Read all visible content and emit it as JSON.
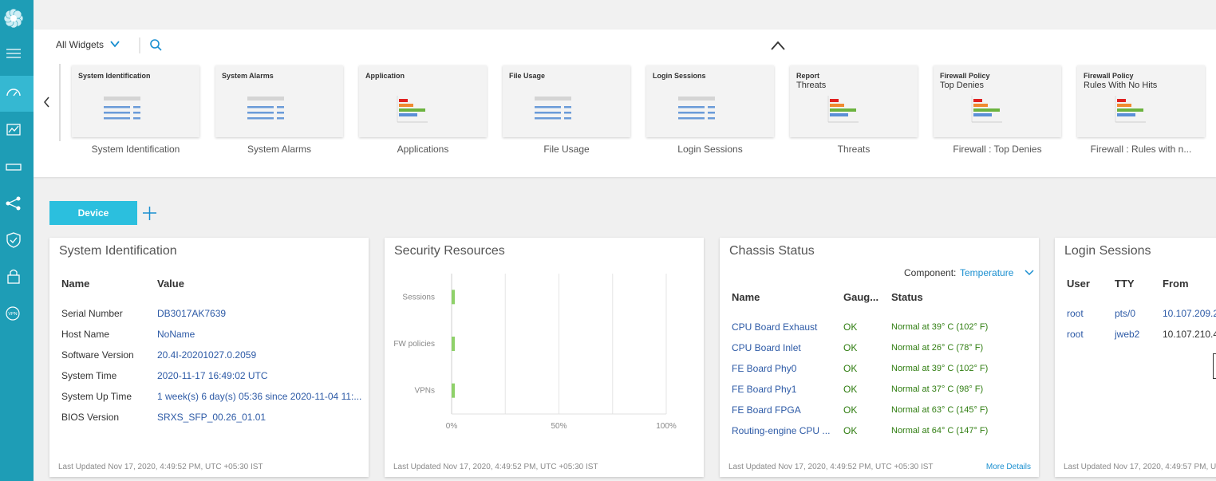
{
  "sidebar": {
    "vpn": "VPN"
  },
  "toolbar": {
    "filter": "All Widgets"
  },
  "widgets": [
    {
      "header": [
        "System Identification"
      ],
      "icon": "list",
      "caption": "System Identification"
    },
    {
      "header": [
        "System Alarms"
      ],
      "icon": "list",
      "caption": "System Alarms"
    },
    {
      "header": [
        "Application"
      ],
      "icon": "bars",
      "caption": "Applications"
    },
    {
      "header": [
        "File Usage"
      ],
      "icon": "list",
      "caption": "File Usage"
    },
    {
      "header": [
        "Login Sessions"
      ],
      "icon": "list",
      "caption": "Login Sessions"
    },
    {
      "header": [
        "Report",
        "Threats"
      ],
      "icon": "bars",
      "caption": "Threats"
    },
    {
      "header": [
        "Firewall Policy",
        "Top Denies"
      ],
      "icon": "bars",
      "caption": "Firewall : Top Denies"
    },
    {
      "header": [
        "Firewall Policy",
        "Rules With No Hits"
      ],
      "icon": "bars",
      "caption": "Firewall : Rules with n..."
    }
  ],
  "tab": {
    "label": "Device"
  },
  "panels": [
    {
      "title": "System Identification",
      "columns": [
        "Name",
        "Value"
      ],
      "rows": [
        [
          "Serial Number",
          "DB3017AK7639"
        ],
        [
          "Host Name",
          "NoName"
        ],
        [
          "Software Version",
          "20.4I-20201027.0.2059"
        ],
        [
          "System Time",
          "2020-11-17 16:49:02 UTC"
        ],
        [
          "System Up Time",
          "1 week(s) 6 day(s)  05:36 since 2020-11-04 11:..."
        ],
        [
          "BIOS Version",
          "SRXS_SFP_00.26_01.01"
        ]
      ],
      "footer": "Last Updated Nov 17, 2020, 4:49:52 PM, UTC +05:30 IST"
    },
    {
      "title": "Chassis Status",
      "component_label": "Component:",
      "component": "Temperature",
      "columns": [
        "Name",
        "Gaug...",
        "Status"
      ],
      "rows": [
        [
          "CPU Board Exhaust",
          "OK",
          "Normal at 39° C (102° F)"
        ],
        [
          "CPU Board Inlet",
          "OK",
          "Normal at 26° C (78° F)"
        ],
        [
          "FE Board Phy0",
          "OK",
          "Normal at 39° C (102° F)"
        ],
        [
          "FE Board Phy1",
          "OK",
          "Normal at 37° C (98° F)"
        ],
        [
          "FE Board FPGA",
          "OK",
          "Normal at 63° C (145° F)"
        ],
        [
          "Routing-engine CPU ...",
          "OK",
          "Normal at 64° C (147° F)"
        ]
      ],
      "footer": "Last Updated Nov 17, 2020, 4:49:52 PM, UTC +05:30 IST",
      "more": "More Details"
    },
    {
      "title": "Login Sessions",
      "columns": [
        "User",
        "TTY",
        "From"
      ],
      "rows": [
        [
          "root",
          "pts/0",
          "10.107.209.2"
        ],
        [
          "root",
          "jweb2",
          "10.107.210.4"
        ]
      ],
      "footer": "Last Updated Nov 17, 2020, 4:49:57 PM, U"
    }
  ],
  "chart_data": {
    "type": "bar",
    "title": "Security Resources",
    "categories": [
      "Sessions",
      "FW policies",
      "VPNs"
    ],
    "values": [
      1.5,
      1.5,
      1.5
    ],
    "color": "#8fd16a",
    "xlim": [
      0,
      100
    ],
    "xticks": [
      {
        "value": 0,
        "label": "0%"
      },
      {
        "value": 50,
        "label": "50%"
      },
      {
        "value": 100,
        "label": "100%"
      }
    ],
    "xminorticks": [
      25,
      75
    ],
    "grid": true,
    "footer": "Last Updated Nov 17, 2020, 4:49:52 PM, UTC +05:30 IST"
  }
}
